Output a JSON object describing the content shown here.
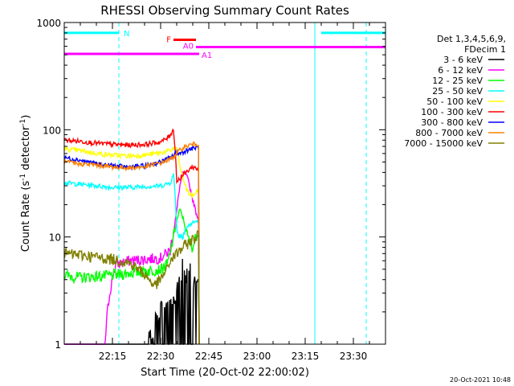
{
  "chart_data": {
    "type": "line",
    "title": "RHESSI Observing Summary Count Rates",
    "xlabel": "Start Time (20-Oct-02 22:00:02)",
    "ylabel_main": "Count Rate (s",
    "ylabel_sup1": "-1",
    "ylabel_mid": " detector",
    "ylabel_sup2": "-1",
    "ylabel_end": ")",
    "y_scale": "log",
    "ylim": [
      1,
      1000
    ],
    "xlim_minutes": [
      0,
      100
    ],
    "x_tick_minutes": [
      15,
      30,
      45,
      60,
      75,
      90
    ],
    "x_tick_labels": [
      "22:15",
      "22:30",
      "22:45",
      "23:00",
      "23:15",
      "23:30"
    ],
    "y_tick_values": [
      1,
      10,
      100,
      1000
    ],
    "y_tick_labels": [
      "1",
      "10",
      "100",
      "1000"
    ],
    "footer": "20-Oct-2021 10:48",
    "legend_header": [
      "Det 1,3,4,5,6,9,",
      "FDecim 1"
    ],
    "legend_position": "right",
    "data_end_minute": 42,
    "series": [
      {
        "name": "3 - 6 keV",
        "color": "#000000",
        "x": [
          0,
          10,
          20,
          27,
          30,
          33,
          35,
          36,
          37,
          38,
          39,
          40,
          41,
          42
        ],
        "y": [
          0,
          0,
          0,
          1.2,
          2.2,
          2.5,
          3.0,
          4.2,
          6.0,
          4.5,
          5.5,
          3.5,
          4.2,
          3.2
        ]
      },
      {
        "name": "6 - 12 keV",
        "color": "#ff00ff",
        "x": [
          0,
          2,
          12,
          16,
          20,
          25,
          30,
          33,
          34,
          35,
          36,
          37,
          38,
          39,
          40,
          41,
          42
        ],
        "y": [
          0,
          0,
          0,
          5.5,
          6.0,
          6.2,
          6.4,
          7.5,
          11,
          17,
          30,
          40,
          38,
          30,
          22,
          17,
          14
        ]
      },
      {
        "name": "12 - 25 keV",
        "color": "#00ff00",
        "x": [
          0,
          5,
          10,
          15,
          20,
          25,
          30,
          32,
          33,
          34,
          35,
          36,
          37,
          38,
          39,
          40,
          41,
          42
        ],
        "y": [
          4.4,
          4.2,
          4.3,
          4.4,
          4.6,
          4.8,
          5.0,
          5.5,
          7.0,
          10,
          14,
          18,
          15,
          11,
          9,
          8,
          10,
          12
        ]
      },
      {
        "name": "25 - 50 keV",
        "color": "#00ffff",
        "x": [
          0,
          5,
          10,
          15,
          20,
          25,
          30,
          33,
          34,
          35,
          36,
          37,
          38,
          39,
          40,
          41,
          42
        ],
        "y": [
          32,
          31,
          30,
          29,
          29,
          29.5,
          30,
          32,
          38,
          12,
          10,
          11,
          12,
          13,
          13.5,
          14,
          14
        ]
      },
      {
        "name": "50 - 100 keV",
        "color": "#ffff00",
        "x": [
          0,
          5,
          10,
          15,
          20,
          25,
          30,
          33,
          34,
          35,
          36,
          37,
          38,
          39,
          40,
          41,
          42
        ],
        "y": [
          66,
          64,
          60,
          58,
          57,
          58,
          61,
          64,
          67,
          68,
          45,
          35,
          28,
          25,
          24,
          26,
          28
        ]
      },
      {
        "name": "100 - 300 keV",
        "color": "#ff0000",
        "x": [
          0,
          5,
          10,
          15,
          20,
          25,
          30,
          32,
          33,
          34,
          35,
          36,
          37,
          38,
          39,
          40,
          41,
          42
        ],
        "y": [
          80,
          78,
          75,
          73,
          72,
          73,
          77,
          83,
          90,
          100,
          33,
          35,
          38,
          40,
          43,
          45,
          44,
          42
        ]
      },
      {
        "name": "300 - 800 keV",
        "color": "#0000ff",
        "x": [
          0,
          5,
          10,
          15,
          20,
          25,
          30,
          33,
          34,
          35,
          36,
          37,
          38,
          39,
          40,
          41,
          42
        ],
        "y": [
          55,
          52,
          48,
          46,
          45,
          46,
          50,
          55,
          58,
          62,
          60,
          62,
          64,
          66,
          67,
          68,
          68
        ]
      },
      {
        "name": "800 - 7000 keV",
        "color": "#ff8000",
        "x": [
          0,
          5,
          10,
          15,
          20,
          25,
          30,
          33,
          34,
          35,
          36,
          37,
          38,
          39,
          40,
          41,
          42
        ],
        "y": [
          50,
          48,
          47,
          45,
          44,
          45,
          49,
          53,
          56,
          60,
          64,
          68,
          70,
          72,
          73,
          74,
          74
        ]
      },
      {
        "name": "7000 - 15000 keV",
        "color": "#808000",
        "x": [
          0,
          5,
          10,
          15,
          20,
          25,
          28,
          30,
          32,
          33,
          34,
          35,
          36,
          37,
          38,
          39,
          40,
          41,
          42
        ],
        "y": [
          7.0,
          6.8,
          6.5,
          6.2,
          5.8,
          4.5,
          3.5,
          4.0,
          5.0,
          6.0,
          6.5,
          7.0,
          7.5,
          8.0,
          8.5,
          9.0,
          9.5,
          10,
          11
        ]
      }
    ],
    "annotations": [
      {
        "label": "N",
        "color": "#00ffff",
        "segments": [
          [
            0,
            17
          ],
          [
            80,
            100
          ]
        ],
        "level": 800
      },
      {
        "label": "F",
        "color": "#ff0000",
        "segments": [
          [
            34,
            41
          ]
        ],
        "level": 690
      },
      {
        "label": "A0",
        "color": "#ff00ff",
        "segments": [
          [
            41,
            100
          ]
        ],
        "level": 590
      },
      {
        "label": "A1",
        "color": "#ff00ff",
        "segments": [
          [
            0,
            42
          ]
        ],
        "level": 510
      }
    ],
    "vertical_lines": [
      {
        "minute": 17,
        "color": "#00ffff",
        "style": "dashed"
      },
      {
        "minute": 78,
        "color": "#00ffff",
        "style": "solid"
      },
      {
        "minute": 94,
        "color": "#00ffff",
        "style": "dashed"
      }
    ]
  }
}
